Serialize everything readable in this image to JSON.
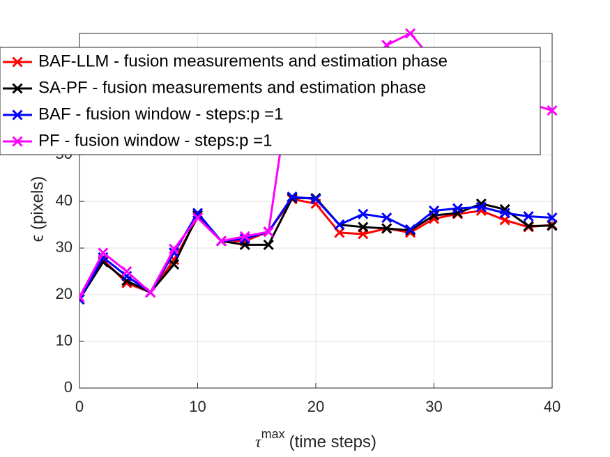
{
  "chart_data": {
    "type": "line",
    "x_label": {
      "symbol": "τ",
      "superscript": "max",
      "text": "(time steps)"
    },
    "y_label": "ϵ (pixels)",
    "x": [
      0,
      2,
      4,
      6,
      8,
      10,
      12,
      14,
      16,
      18,
      20,
      22,
      24,
      26,
      28,
      30,
      32,
      34,
      36,
      38,
      40
    ],
    "series": [
      {
        "name": "BAF-LLM - fusion measurements and estimation phase",
        "color": "#ff0000",
        "values": [
          19.5,
          27.5,
          22.5,
          20.5,
          27.5,
          36.5,
          31.5,
          31.5,
          33.5,
          40.5,
          39.5,
          33.3,
          33,
          34.2,
          33.3,
          36.3,
          37.3,
          38,
          36,
          34.5,
          35
        ]
      },
      {
        "name": "SA-PF - fusion measurements and estimation phase",
        "color": "#000000",
        "values": [
          19,
          27,
          23,
          20.5,
          26.5,
          37,
          31.5,
          30.7,
          30.7,
          40.7,
          40.7,
          35,
          34.5,
          34.2,
          33.8,
          37,
          37.5,
          39.5,
          38.3,
          34.7,
          34.8
        ]
      },
      {
        "name": "BAF - fusion window - steps:p =1",
        "color": "#0000ff",
        "values": [
          19,
          28,
          24,
          20.5,
          29,
          37.5,
          31.5,
          32,
          33.5,
          41,
          40.5,
          35,
          37.3,
          36.5,
          34,
          38,
          38.5,
          38.8,
          37.5,
          36.8,
          36.5
        ]
      },
      {
        "name": "PF - fusion window - steps:p =1",
        "color": "#ff00ff",
        "values": [
          19.5,
          29,
          25,
          20.5,
          29.8,
          36.5,
          31.5,
          32.5,
          33.5,
          68,
          65,
          62,
          66,
          73.5,
          76,
          70,
          66,
          64,
          62,
          61,
          59.5
        ]
      }
    ],
    "xlim": [
      0,
      40
    ],
    "xticks": [
      0,
      10,
      20,
      30,
      40
    ],
    "ylim": [
      0,
      76
    ],
    "yticks": [
      0,
      10,
      20,
      30,
      40,
      50,
      60,
      70
    ],
    "grid": true,
    "legend": "upper left"
  }
}
